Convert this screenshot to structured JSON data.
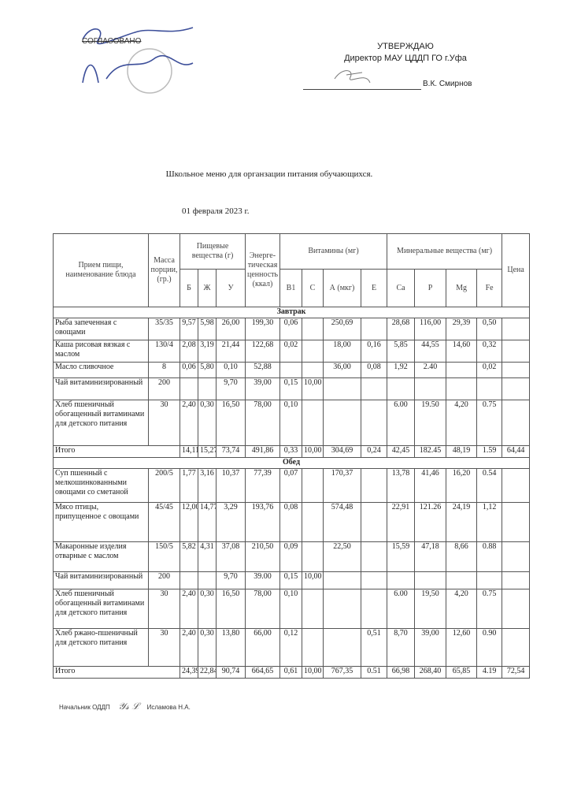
{
  "agreement": {
    "label": "СОГЛАСОВАНО",
    "handwritten": "Согласовано А.Р. Фазлева"
  },
  "approval": {
    "heading": "УТВЕРЖДАЮ",
    "position": "Директор МАУ ЦДДП ГО г.Уфа",
    "name": "В.К. Смирнов"
  },
  "title": "Школьное меню для органзации питания обучающихся.",
  "date": "01 февраля 2023 г.",
  "table": {
    "headers": {
      "dish": "Прием пищи, наименование блюда",
      "mass": "Масса порции, (гр.)",
      "nutrients": "Пищевые вещества (г)",
      "energy": "Энерге-тическая ценность (ккал)",
      "vitamins": "Витамины (мг)",
      "minerals": "Минеральные вещества (мг)",
      "price": "Цена",
      "sub": [
        "Б",
        "Ж",
        "У",
        "B1",
        "С",
        "А (мкг)",
        "Е",
        "Ca",
        "P",
        "Mg",
        "Fe"
      ]
    },
    "sections": [
      {
        "title": "Завтрак",
        "rows": [
          [
            "Рыба запеченная с овощами",
            "35/35",
            "9,57",
            "5,98",
            "26,00",
            "199,30",
            "0,06",
            "",
            "250,69",
            "",
            "28,68",
            "116,00",
            "29,39",
            "0,50",
            ""
          ],
          [
            "Каша рисовая вязкая с маслом",
            "130/4",
            "2,08",
            "3,19",
            "21,44",
            "122,68",
            "0,02",
            "",
            "18,00",
            "0,16",
            "5,85",
            "44,55",
            "14,60",
            "0,32",
            ""
          ],
          [
            "Масло сливочное",
            "8",
            "0,06",
            "5,80",
            "0,10",
            "52,88",
            "",
            "",
            "36,00",
            "0,08",
            "1,92",
            "2.40",
            "",
            "0,02",
            ""
          ],
          [
            "Чай витаминизированный",
            "200",
            "",
            "",
            "9,70",
            "39,00",
            "0,15",
            "10,00",
            "",
            "",
            "",
            "",
            "",
            "",
            ""
          ],
          [
            "Хлеб пшеничный обогащенный витаминами для детского питания",
            "30",
            "2,40",
            "0,30",
            "16,50",
            "78,00",
            "0,10",
            "",
            "",
            "",
            "6.00",
            "19.50",
            "4,20",
            "0.75",
            ""
          ]
        ],
        "total": [
          "Итого",
          "",
          "14,11",
          "15,27",
          "73,74",
          "491,86",
          "0,33",
          "10,00",
          "304,69",
          "0,24",
          "42,45",
          "182.45",
          "48,19",
          "1.59",
          "64,44"
        ]
      },
      {
        "title": "Обед",
        "rows": [
          [
            "Суп пшенный с мелкошинкованными овощами со сметаной",
            "200/5",
            "1,77",
            "3,16",
            "10,37",
            "77,39",
            "0,07",
            "",
            "170,37",
            "",
            "13,78",
            "41,46",
            "16,20",
            "0.54",
            ""
          ],
          [
            "Мясо птицы, припущенное с овощами",
            "45/45",
            "12,00",
            "14,77",
            "3,29",
            "193,76",
            "0,08",
            "",
            "574,48",
            "",
            "22,91",
            "121.26",
            "24,19",
            "1,12",
            ""
          ],
          [
            "Макаронные изделия отварные с маслом",
            "150/5",
            "5,82",
            "4,31",
            "37,08",
            "210,50",
            "0,09",
            "",
            "22,50",
            "",
            "15,59",
            "47,18",
            "8,66",
            "0.88",
            ""
          ],
          [
            "Чай витаминизированный",
            "200",
            "",
            "",
            "9,70",
            "39.00",
            "0,15",
            "10,00",
            "",
            "",
            "",
            "",
            "",
            "",
            ""
          ],
          [
            "Хлеб пшеничный обогащенный витаминами для детского питания",
            "30",
            "2,40",
            "0,30",
            "16,50",
            "78,00",
            "0,10",
            "",
            "",
            "",
            "6.00",
            "19,50",
            "4,20",
            "0.75",
            ""
          ],
          [
            "Хлеб ржано-пшеничный для детского питания",
            "30",
            "2,40",
            "0,30",
            "13,80",
            "66,00",
            "0,12",
            "",
            "",
            "0,51",
            "8,70",
            "39,00",
            "12,60",
            "0.90",
            ""
          ]
        ],
        "total": [
          "Итого",
          "",
          "24,39",
          "22,84",
          "90,74",
          "664,65",
          "0,61",
          "10,00",
          "767,35",
          "0.51",
          "66,98",
          "268,40",
          "65,85",
          "4.19",
          "72,54"
        ]
      }
    ]
  },
  "footer": {
    "position": "Начальник ОДДП",
    "signature": "Ysi L",
    "name": "Исламова Н.А."
  }
}
